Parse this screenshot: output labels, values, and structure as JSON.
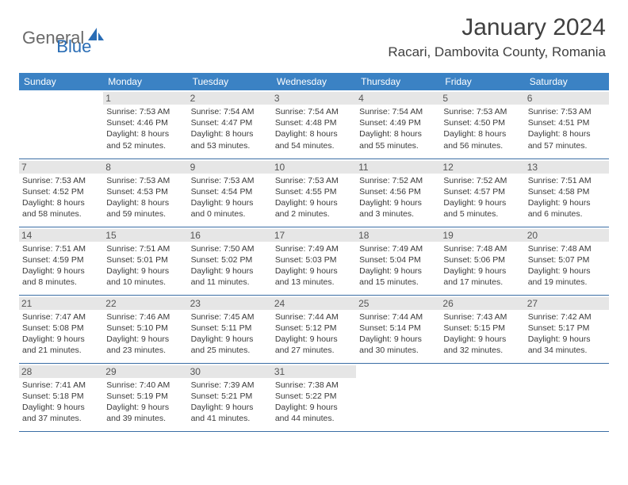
{
  "brand": {
    "part1": "General",
    "part2": "Blue"
  },
  "title": "January 2024",
  "location": "Racari, Dambovita County, Romania",
  "colors": {
    "header_bg": "#3b82c4",
    "header_text": "#ffffff",
    "daynum_bg": "#e6e6e6",
    "border": "#3b6ea5",
    "logo_gray": "#6a6a6a",
    "logo_blue": "#2a6db5"
  },
  "weekdays": [
    "Sunday",
    "Monday",
    "Tuesday",
    "Wednesday",
    "Thursday",
    "Friday",
    "Saturday"
  ],
  "weeks": [
    [
      {
        "num": "",
        "sunrise": "",
        "sunset": "",
        "daylight": ""
      },
      {
        "num": "1",
        "sunrise": "Sunrise: 7:53 AM",
        "sunset": "Sunset: 4:46 PM",
        "daylight": "Daylight: 8 hours and 52 minutes."
      },
      {
        "num": "2",
        "sunrise": "Sunrise: 7:54 AM",
        "sunset": "Sunset: 4:47 PM",
        "daylight": "Daylight: 8 hours and 53 minutes."
      },
      {
        "num": "3",
        "sunrise": "Sunrise: 7:54 AM",
        "sunset": "Sunset: 4:48 PM",
        "daylight": "Daylight: 8 hours and 54 minutes."
      },
      {
        "num": "4",
        "sunrise": "Sunrise: 7:54 AM",
        "sunset": "Sunset: 4:49 PM",
        "daylight": "Daylight: 8 hours and 55 minutes."
      },
      {
        "num": "5",
        "sunrise": "Sunrise: 7:53 AM",
        "sunset": "Sunset: 4:50 PM",
        "daylight": "Daylight: 8 hours and 56 minutes."
      },
      {
        "num": "6",
        "sunrise": "Sunrise: 7:53 AM",
        "sunset": "Sunset: 4:51 PM",
        "daylight": "Daylight: 8 hours and 57 minutes."
      }
    ],
    [
      {
        "num": "7",
        "sunrise": "Sunrise: 7:53 AM",
        "sunset": "Sunset: 4:52 PM",
        "daylight": "Daylight: 8 hours and 58 minutes."
      },
      {
        "num": "8",
        "sunrise": "Sunrise: 7:53 AM",
        "sunset": "Sunset: 4:53 PM",
        "daylight": "Daylight: 8 hours and 59 minutes."
      },
      {
        "num": "9",
        "sunrise": "Sunrise: 7:53 AM",
        "sunset": "Sunset: 4:54 PM",
        "daylight": "Daylight: 9 hours and 0 minutes."
      },
      {
        "num": "10",
        "sunrise": "Sunrise: 7:53 AM",
        "sunset": "Sunset: 4:55 PM",
        "daylight": "Daylight: 9 hours and 2 minutes."
      },
      {
        "num": "11",
        "sunrise": "Sunrise: 7:52 AM",
        "sunset": "Sunset: 4:56 PM",
        "daylight": "Daylight: 9 hours and 3 minutes."
      },
      {
        "num": "12",
        "sunrise": "Sunrise: 7:52 AM",
        "sunset": "Sunset: 4:57 PM",
        "daylight": "Daylight: 9 hours and 5 minutes."
      },
      {
        "num": "13",
        "sunrise": "Sunrise: 7:51 AM",
        "sunset": "Sunset: 4:58 PM",
        "daylight": "Daylight: 9 hours and 6 minutes."
      }
    ],
    [
      {
        "num": "14",
        "sunrise": "Sunrise: 7:51 AM",
        "sunset": "Sunset: 4:59 PM",
        "daylight": "Daylight: 9 hours and 8 minutes."
      },
      {
        "num": "15",
        "sunrise": "Sunrise: 7:51 AM",
        "sunset": "Sunset: 5:01 PM",
        "daylight": "Daylight: 9 hours and 10 minutes."
      },
      {
        "num": "16",
        "sunrise": "Sunrise: 7:50 AM",
        "sunset": "Sunset: 5:02 PM",
        "daylight": "Daylight: 9 hours and 11 minutes."
      },
      {
        "num": "17",
        "sunrise": "Sunrise: 7:49 AM",
        "sunset": "Sunset: 5:03 PM",
        "daylight": "Daylight: 9 hours and 13 minutes."
      },
      {
        "num": "18",
        "sunrise": "Sunrise: 7:49 AM",
        "sunset": "Sunset: 5:04 PM",
        "daylight": "Daylight: 9 hours and 15 minutes."
      },
      {
        "num": "19",
        "sunrise": "Sunrise: 7:48 AM",
        "sunset": "Sunset: 5:06 PM",
        "daylight": "Daylight: 9 hours and 17 minutes."
      },
      {
        "num": "20",
        "sunrise": "Sunrise: 7:48 AM",
        "sunset": "Sunset: 5:07 PM",
        "daylight": "Daylight: 9 hours and 19 minutes."
      }
    ],
    [
      {
        "num": "21",
        "sunrise": "Sunrise: 7:47 AM",
        "sunset": "Sunset: 5:08 PM",
        "daylight": "Daylight: 9 hours and 21 minutes."
      },
      {
        "num": "22",
        "sunrise": "Sunrise: 7:46 AM",
        "sunset": "Sunset: 5:10 PM",
        "daylight": "Daylight: 9 hours and 23 minutes."
      },
      {
        "num": "23",
        "sunrise": "Sunrise: 7:45 AM",
        "sunset": "Sunset: 5:11 PM",
        "daylight": "Daylight: 9 hours and 25 minutes."
      },
      {
        "num": "24",
        "sunrise": "Sunrise: 7:44 AM",
        "sunset": "Sunset: 5:12 PM",
        "daylight": "Daylight: 9 hours and 27 minutes."
      },
      {
        "num": "25",
        "sunrise": "Sunrise: 7:44 AM",
        "sunset": "Sunset: 5:14 PM",
        "daylight": "Daylight: 9 hours and 30 minutes."
      },
      {
        "num": "26",
        "sunrise": "Sunrise: 7:43 AM",
        "sunset": "Sunset: 5:15 PM",
        "daylight": "Daylight: 9 hours and 32 minutes."
      },
      {
        "num": "27",
        "sunrise": "Sunrise: 7:42 AM",
        "sunset": "Sunset: 5:17 PM",
        "daylight": "Daylight: 9 hours and 34 minutes."
      }
    ],
    [
      {
        "num": "28",
        "sunrise": "Sunrise: 7:41 AM",
        "sunset": "Sunset: 5:18 PM",
        "daylight": "Daylight: 9 hours and 37 minutes."
      },
      {
        "num": "29",
        "sunrise": "Sunrise: 7:40 AM",
        "sunset": "Sunset: 5:19 PM",
        "daylight": "Daylight: 9 hours and 39 minutes."
      },
      {
        "num": "30",
        "sunrise": "Sunrise: 7:39 AM",
        "sunset": "Sunset: 5:21 PM",
        "daylight": "Daylight: 9 hours and 41 minutes."
      },
      {
        "num": "31",
        "sunrise": "Sunrise: 7:38 AM",
        "sunset": "Sunset: 5:22 PM",
        "daylight": "Daylight: 9 hours and 44 minutes."
      },
      {
        "num": "",
        "sunrise": "",
        "sunset": "",
        "daylight": ""
      },
      {
        "num": "",
        "sunrise": "",
        "sunset": "",
        "daylight": ""
      },
      {
        "num": "",
        "sunrise": "",
        "sunset": "",
        "daylight": ""
      }
    ]
  ]
}
